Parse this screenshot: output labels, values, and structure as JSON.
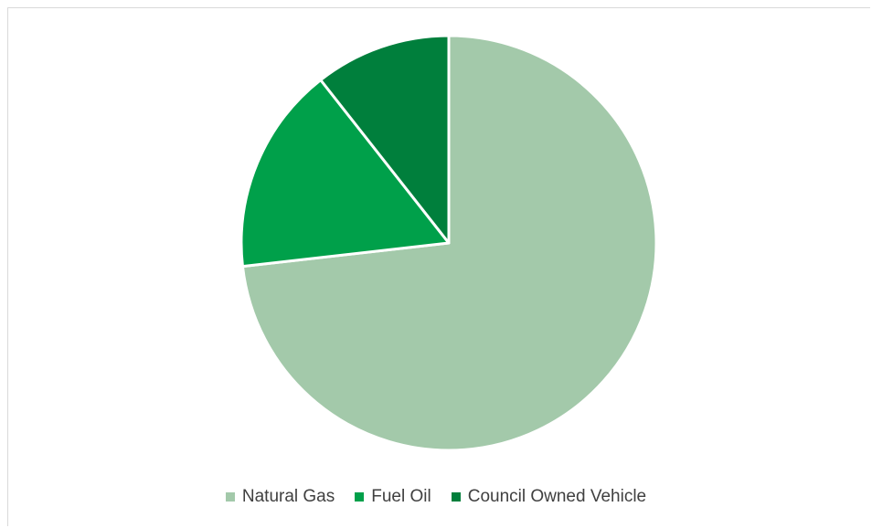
{
  "chart_data": {
    "type": "pie",
    "title": "",
    "categories": [
      "Natural Gas",
      "Fuel Oil",
      "Council Owned Vehicle"
    ],
    "values": [
      73.2,
      16.2,
      10.6
    ],
    "colors": [
      "#a3c9aa",
      "#00a04a",
      "#007f3c"
    ],
    "start_angle_deg": 0,
    "direction": "clockwise",
    "slice_border_color": "#ffffff",
    "legend_position": "bottom"
  }
}
